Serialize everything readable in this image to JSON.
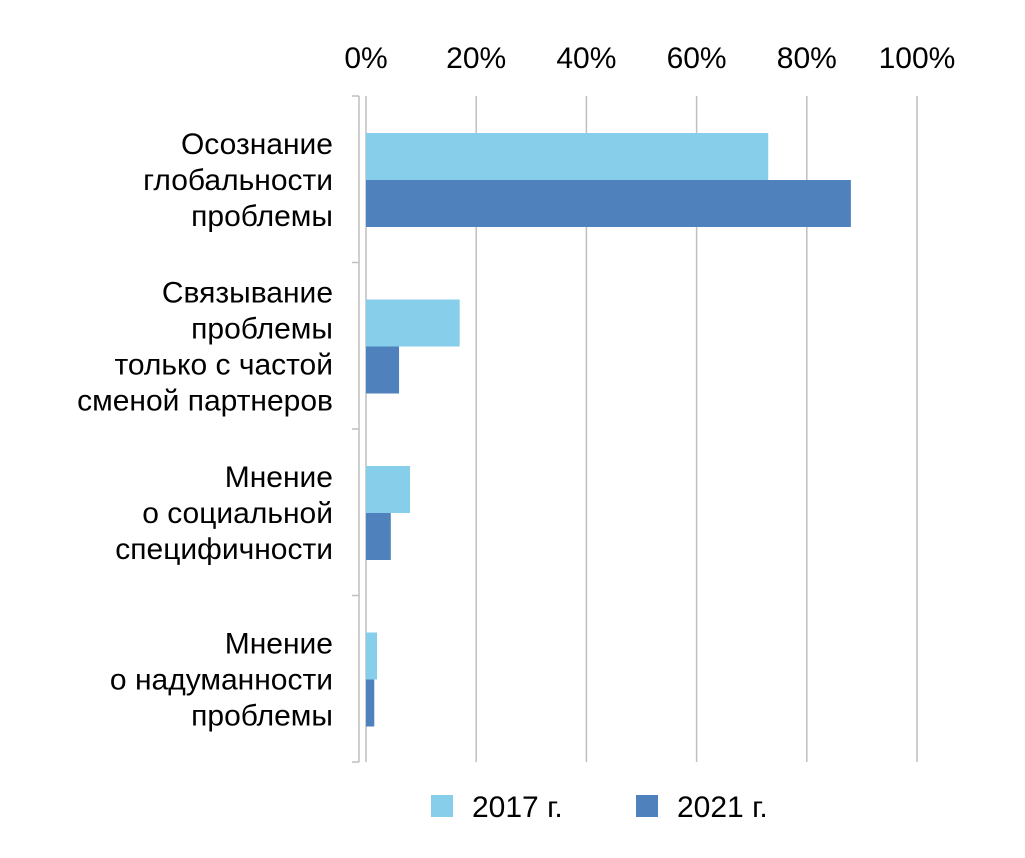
{
  "chart_data": {
    "type": "bar",
    "orientation": "horizontal",
    "categories": [
      "Осознание глобальности проблемы",
      "Связывание проблемы только с частой сменой партнеров",
      "Мнение о социальной специфичности",
      "Мнение о надуманности проблемы"
    ],
    "category_label_lines": [
      [
        "Осознание",
        "глобальности",
        "проблемы"
      ],
      [
        "Связывание",
        "проблемы",
        "только с частой",
        "сменой партнеров"
      ],
      [
        "Мнение",
        "о социальной",
        "специфичности"
      ],
      [
        "Мнение",
        "о надуманности",
        "проблемы"
      ]
    ],
    "series": [
      {
        "name": "2017 г.",
        "color": "#87CEEB",
        "values": [
          73,
          17,
          8,
          2
        ]
      },
      {
        "name": "2021 г.",
        "color": "#4F81BD",
        "values": [
          88,
          6,
          4.5,
          1.5
        ]
      }
    ],
    "x_tick_labels": [
      "0%",
      "20%",
      "40%",
      "60%",
      "80%",
      "100%"
    ],
    "xlim": [
      0,
      100
    ],
    "x_axis_position": "top",
    "grid": true,
    "legend": "bottom",
    "title": "",
    "xlabel": "",
    "ylabel": ""
  }
}
